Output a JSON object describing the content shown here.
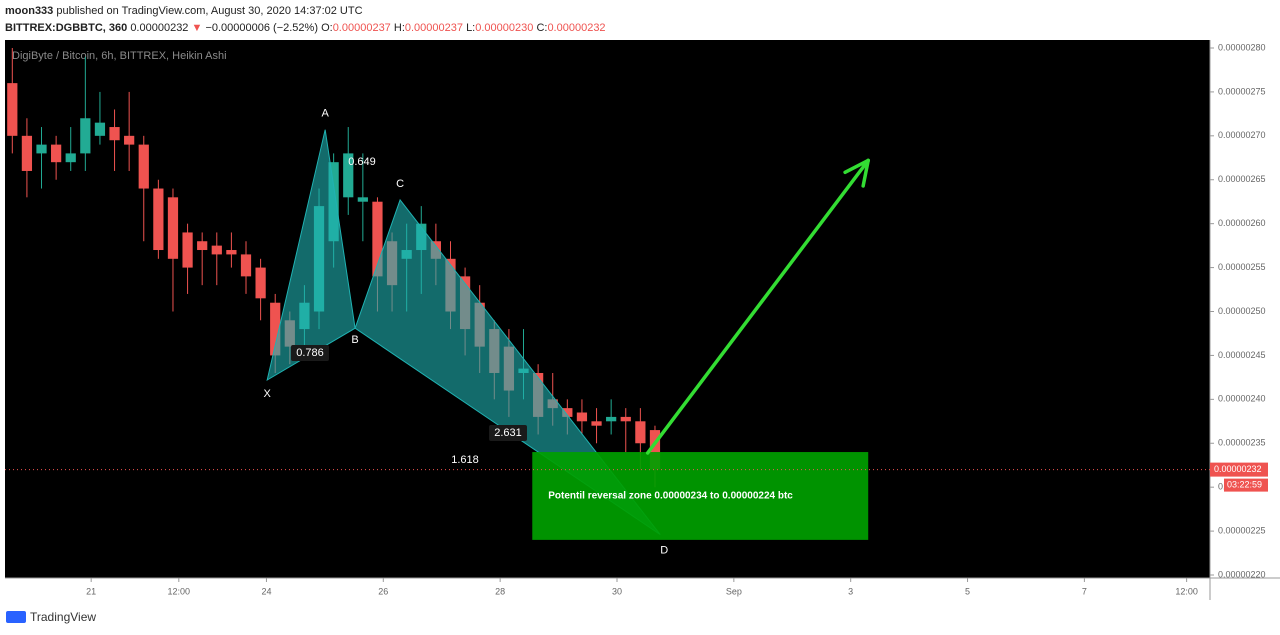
{
  "header": {
    "author": "moon333",
    "published": "published on TradingView.com, August 30, 2020 14:37:02 UTC",
    "symbol": "BITTREX:DGBBTC, 360",
    "price": "0.00000232",
    "change": "−0.00000006 (−2.52%)",
    "fields": [
      {
        "label": "O:",
        "value": "0.00000237"
      },
      {
        "label": "H:",
        "value": "0.00000237"
      },
      {
        "label": "L:",
        "value": "0.00000230"
      },
      {
        "label": "C:",
        "value": "0.00000232"
      }
    ]
  },
  "footer": {
    "brand": "TradingView"
  },
  "chart_data": {
    "type": "candlestick",
    "title": "DigiByte / Bitcoin, 6h, BITTREX, Heikin Ashi",
    "up_color": "#22ab94",
    "down_color": "#ef5350",
    "grid": false,
    "x": [
      0,
      1,
      2,
      3,
      4,
      5,
      6,
      7,
      8,
      9,
      10,
      11,
      12,
      13,
      14,
      15,
      16,
      17,
      18,
      19,
      20,
      21,
      22,
      23,
      24,
      25,
      26,
      27,
      28,
      29,
      30,
      31,
      32,
      33,
      34,
      35,
      36,
      37,
      38,
      39,
      40,
      41,
      42,
      43,
      44
    ],
    "open": [
      2.76e-06,
      2.7e-06,
      2.68e-06,
      2.69e-06,
      2.67e-06,
      2.68e-06,
      2.7e-06,
      2.71e-06,
      2.7e-06,
      2.69e-06,
      2.64e-06,
      2.63e-06,
      2.59e-06,
      2.58e-06,
      2.575e-06,
      2.57e-06,
      2.565e-06,
      2.55e-06,
      2.51e-06,
      2.49e-06,
      2.48e-06,
      2.5e-06,
      2.58e-06,
      2.63e-06,
      2.625e-06,
      2.625e-06,
      2.58e-06,
      2.56e-06,
      2.57e-06,
      2.58e-06,
      2.56e-06,
      2.54e-06,
      2.51e-06,
      2.48e-06,
      2.46e-06,
      2.43e-06,
      2.43e-06,
      2.4e-06,
      2.39e-06,
      2.385e-06,
      2.375e-06,
      2.375e-06,
      2.38e-06,
      2.375e-06,
      2.365e-06
    ],
    "high": [
      2.8e-06,
      2.72e-06,
      2.71e-06,
      2.7e-06,
      2.71e-06,
      2.79e-06,
      2.75e-06,
      2.73e-06,
      2.75e-06,
      2.7e-06,
      2.65e-06,
      2.64e-06,
      2.6e-06,
      2.59e-06,
      2.59e-06,
      2.59e-06,
      2.58e-06,
      2.56e-06,
      2.52e-06,
      2.5e-06,
      2.53e-06,
      2.64e-06,
      2.68e-06,
      2.71e-06,
      2.68e-06,
      2.63e-06,
      2.59e-06,
      2.6e-06,
      2.62e-06,
      2.6e-06,
      2.58e-06,
      2.55e-06,
      2.53e-06,
      2.49e-06,
      2.48e-06,
      2.48e-06,
      2.44e-06,
      2.43e-06,
      2.4e-06,
      2.4e-06,
      2.39e-06,
      2.4e-06,
      2.39e-06,
      2.39e-06,
      2.37e-06
    ],
    "low": [
      2.68e-06,
      2.63e-06,
      2.64e-06,
      2.65e-06,
      2.66e-06,
      2.66e-06,
      2.69e-06,
      2.66e-06,
      2.66e-06,
      2.58e-06,
      2.56e-06,
      2.5e-06,
      2.52e-06,
      2.53e-06,
      2.53e-06,
      2.55e-06,
      2.52e-06,
      2.49e-06,
      2.43e-06,
      2.44e-06,
      2.46e-06,
      2.48e-06,
      2.55e-06,
      2.61e-06,
      2.58e-06,
      2.5e-06,
      2.5e-06,
      2.5e-06,
      2.52e-06,
      2.53e-06,
      2.48e-06,
      2.45e-06,
      2.43e-06,
      2.4e-06,
      2.38e-06,
      2.4e-06,
      2.36e-06,
      2.37e-06,
      2.36e-06,
      2.36e-06,
      2.35e-06,
      2.36e-06,
      2.34e-06,
      2.32e-06,
      2.3e-06
    ],
    "close": [
      2.7e-06,
      2.66e-06,
      2.69e-06,
      2.67e-06,
      2.68e-06,
      2.72e-06,
      2.715e-06,
      2.695e-06,
      2.69e-06,
      2.64e-06,
      2.57e-06,
      2.56e-06,
      2.55e-06,
      2.57e-06,
      2.565e-06,
      2.565e-06,
      2.54e-06,
      2.515e-06,
      2.45e-06,
      2.46e-06,
      2.51e-06,
      2.62e-06,
      2.67e-06,
      2.68e-06,
      2.63e-06,
      2.54e-06,
      2.53e-06,
      2.57e-06,
      2.6e-06,
      2.56e-06,
      2.5e-06,
      2.48e-06,
      2.46e-06,
      2.43e-06,
      2.41e-06,
      2.435e-06,
      2.38e-06,
      2.39e-06,
      2.38e-06,
      2.375e-06,
      2.37e-06,
      2.38e-06,
      2.375e-06,
      2.35e-06,
      2.32e-06
    ],
    "xlim": [
      -0.5,
      82
    ],
    "xticks": [
      {
        "value": 5.4,
        "label": "21"
      },
      {
        "value": 11.4,
        "label": "12:00"
      },
      {
        "value": 17.4,
        "label": "24"
      },
      {
        "value": 25.4,
        "label": "26"
      },
      {
        "value": 33.4,
        "label": "28"
      },
      {
        "value": 41.4,
        "label": "30"
      },
      {
        "value": 49.4,
        "label": "Sep"
      },
      {
        "value": 57.4,
        "label": "3"
      },
      {
        "value": 65.4,
        "label": "5"
      },
      {
        "value": 73.4,
        "label": "7"
      },
      {
        "value": 80.4,
        "label": "12:00"
      }
    ],
    "ylim": [
      2.1966e-06,
      2.8091e-06
    ],
    "yticks": [
      {
        "value": 2.2e-06,
        "label": "0.00000220"
      },
      {
        "value": 2.25e-06,
        "label": "0.00000225"
      },
      {
        "value": 2.3e-06,
        "label": "0.00000230"
      },
      {
        "value": 2.35e-06,
        "label": "0.00000235"
      },
      {
        "value": 2.4e-06,
        "label": "0.00000240"
      },
      {
        "value": 2.45e-06,
        "label": "0.00000245"
      },
      {
        "value": 2.5e-06,
        "label": "0.00000250"
      },
      {
        "value": 2.55e-06,
        "label": "0.00000255"
      },
      {
        "value": 2.6e-06,
        "label": "0.00000260"
      },
      {
        "value": 2.65e-06,
        "label": "0.00000265"
      },
      {
        "value": 2.7e-06,
        "label": "0.00000270"
      },
      {
        "value": 2.75e-06,
        "label": "0.00000275"
      },
      {
        "value": 2.8e-06,
        "label": "0.00000280"
      }
    ],
    "last_price": {
      "value": 2.32e-06,
      "label": "0.00000232"
    },
    "countdown": "03:22:59",
    "pattern": {
      "color": "#20b2b2",
      "points": [
        {
          "label": "X",
          "x": 17.45,
          "y": 2.422e-06
        },
        {
          "label": "A",
          "x": 21.42,
          "y": 2.707e-06
        },
        {
          "label": "B",
          "x": 23.47,
          "y": 2.481e-06
        },
        {
          "label": "C",
          "x": 26.55,
          "y": 2.627e-06
        },
        {
          "label": "D",
          "x": 44.36,
          "y": 2.246e-06
        }
      ],
      "ratios": [
        0.786,
        0.649,
        2.631,
        1.618
      ]
    },
    "zone": {
      "label": "Potentil reversal zone 0.00000234 to 0.00000224 btc",
      "color": "#00a000",
      "x": [
        35.6,
        58.6
      ],
      "y": [
        2.34e-06,
        2.24e-06
      ]
    },
    "arrow": {
      "color": "#33dd33",
      "x": [
        43.5,
        58.6
      ],
      "y": [
        2.339e-06,
        2.672e-06
      ]
    }
  }
}
